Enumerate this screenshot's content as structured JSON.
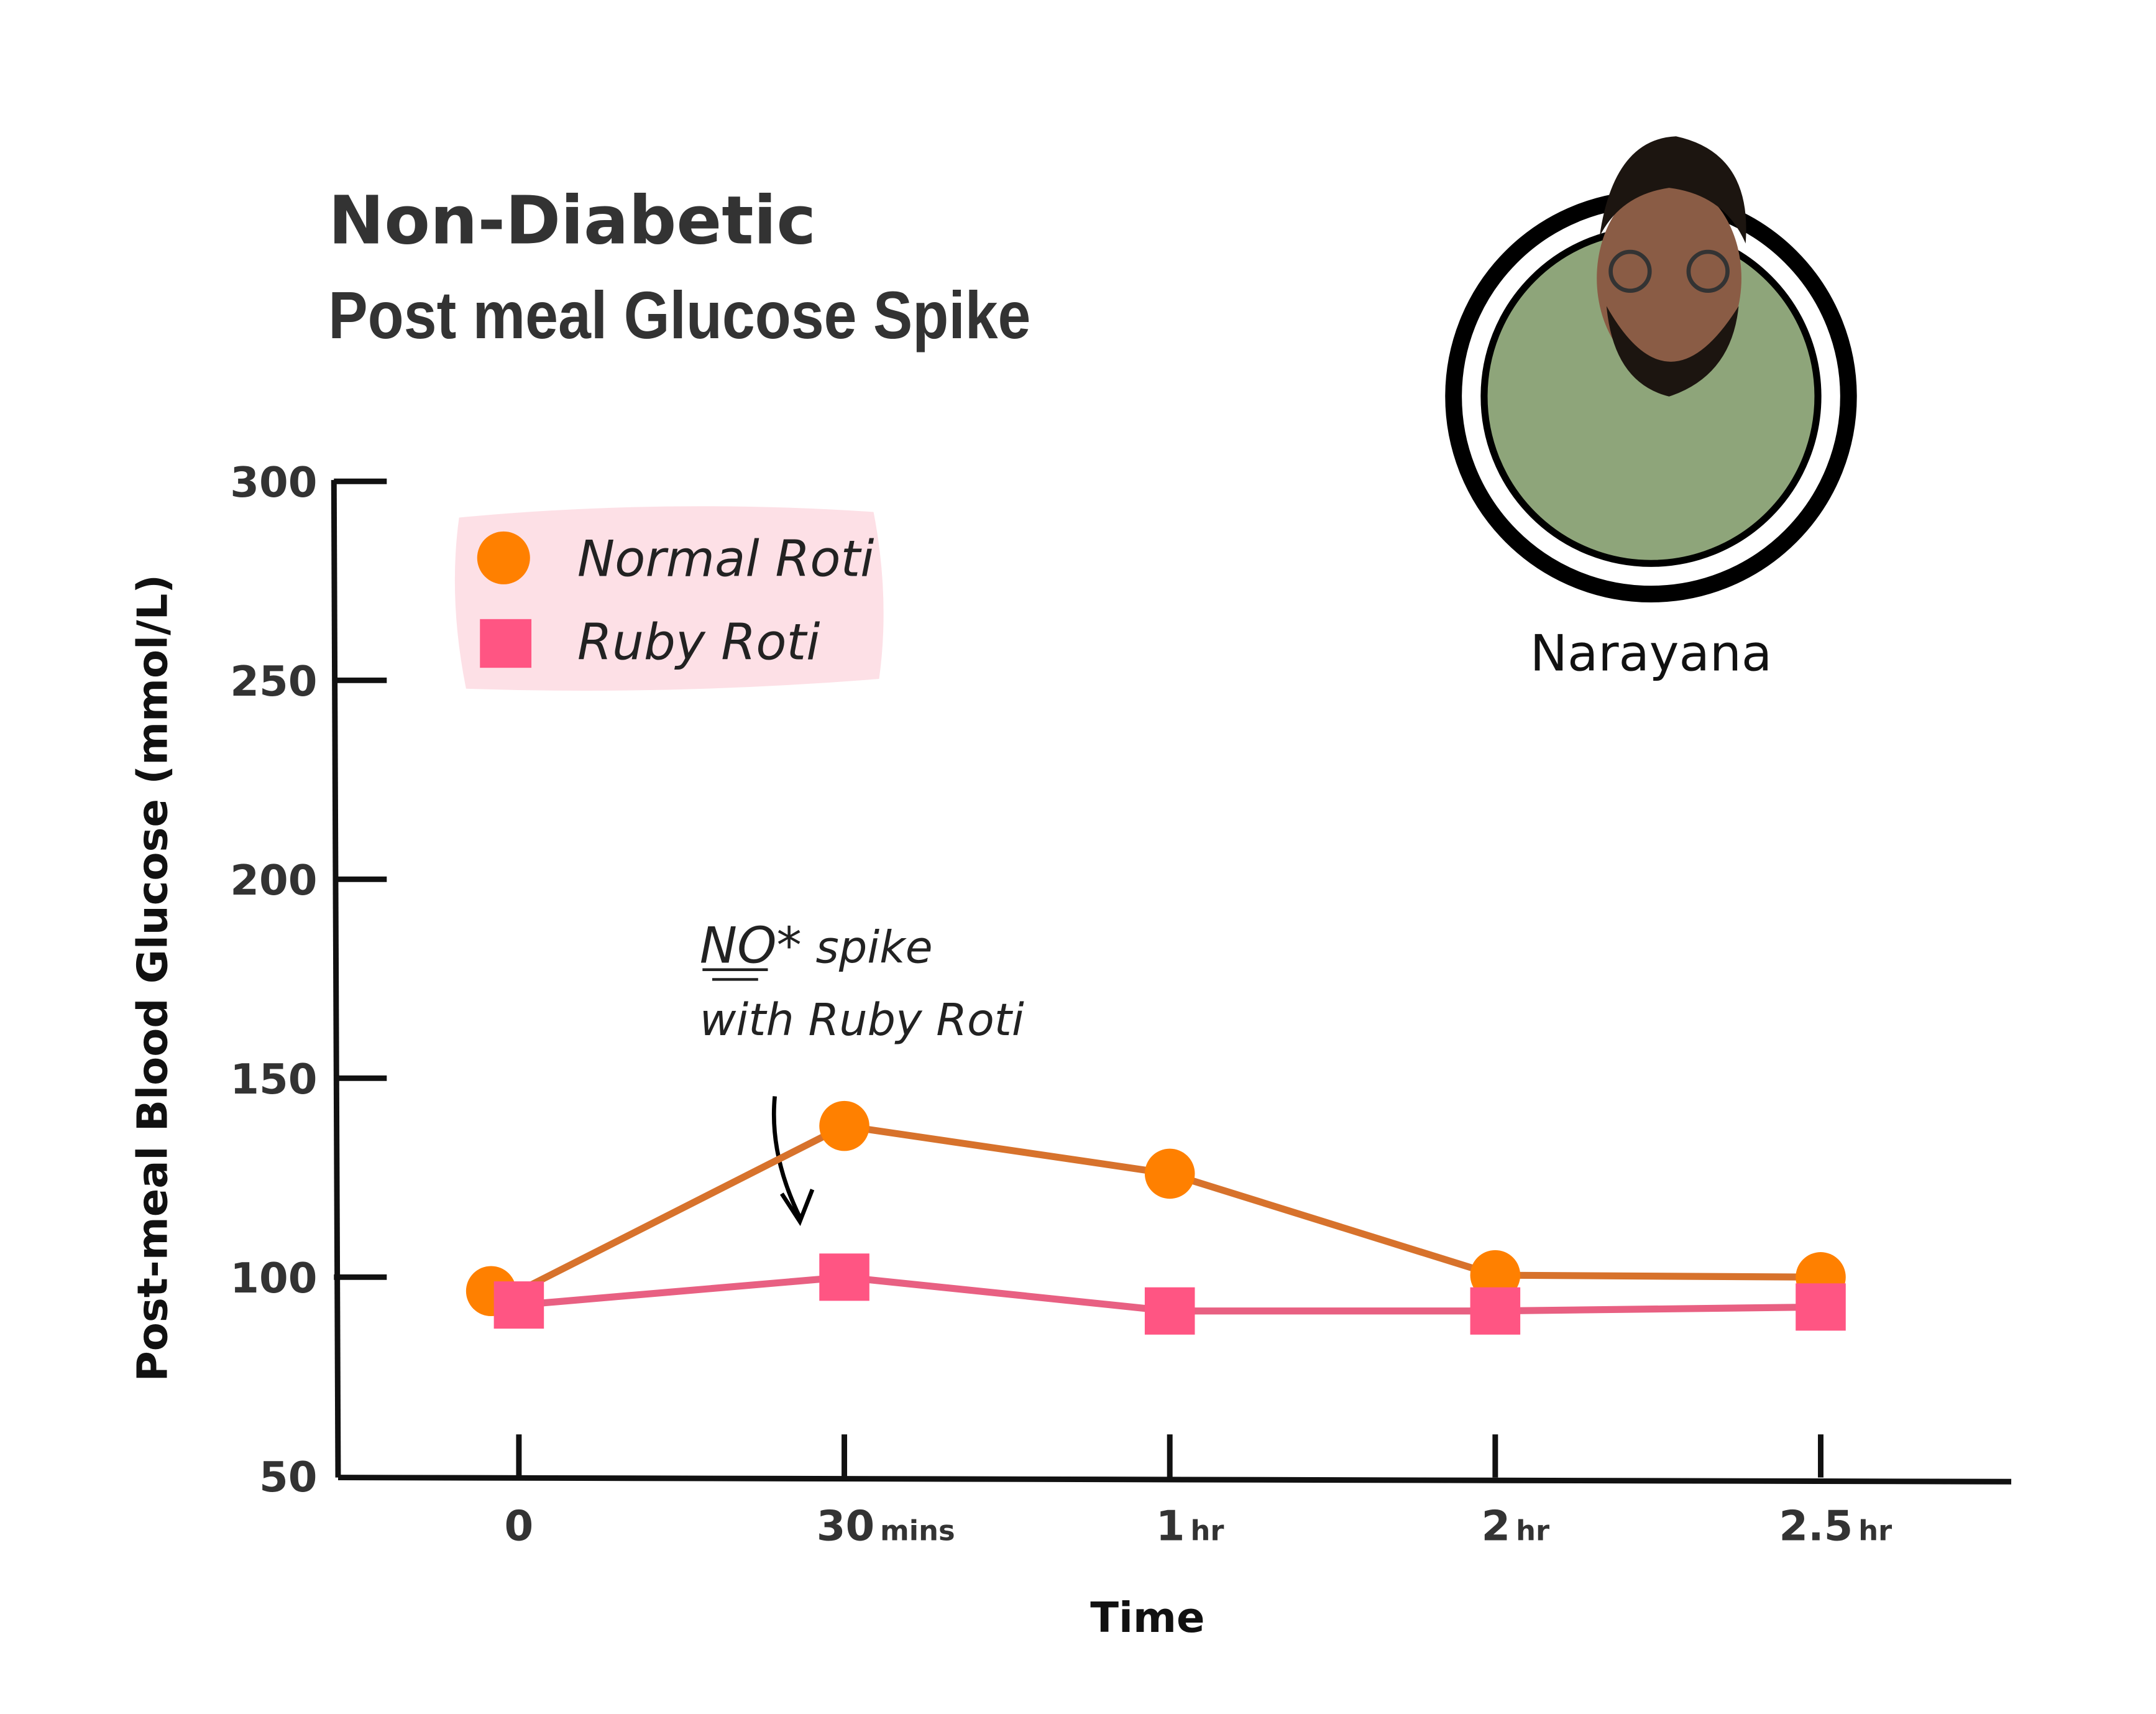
{
  "title": "Non-Diabetic",
  "subtitle": "Post meal Glucose Spike",
  "person_name": "Narayana",
  "annotation": {
    "line1_emph": "NO*",
    "line1_rest": " spike",
    "line2": "with Ruby Roti"
  },
  "chart_data": {
    "type": "line",
    "title": "Non-Diabetic Post meal Glucose Spike",
    "xlabel": "Time",
    "ylabel": "Post-meal Blood Glucose (mmol/L)",
    "ylim": [
      50,
      300
    ],
    "yticks": [
      "300",
      "250",
      "200",
      "150",
      "100",
      "50"
    ],
    "ytick_values": [
      300,
      250,
      200,
      150,
      100,
      50
    ],
    "categories": [
      {
        "main": "0",
        "unit": ""
      },
      {
        "main": "30",
        "unit": "mins"
      },
      {
        "main": "1",
        "unit": "hr"
      },
      {
        "main": "2",
        "unit": "hr"
      },
      {
        "main": "2.5",
        "unit": "hr"
      }
    ],
    "grid": false,
    "legend_position": "top-left",
    "series": [
      {
        "name": "Normal Roti",
        "marker": "circle",
        "color": "#ff8000",
        "line_color": "#d7722c",
        "values": [
          96.5,
          138,
          126,
          100.5,
          100
        ]
      },
      {
        "name": "Ruby Roti",
        "marker": "square",
        "color": "#ff5583",
        "line_color": "#e86082",
        "values": [
          93,
          100,
          91.5,
          91.5,
          92.5
        ]
      }
    ]
  }
}
